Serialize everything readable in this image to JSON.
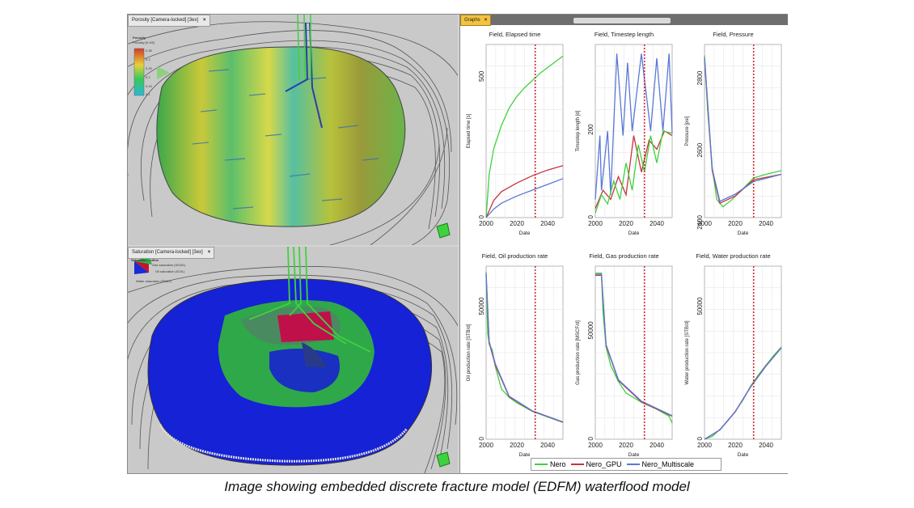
{
  "viewers": {
    "top_tab": "Porosity [Camera-locked] [3ex]",
    "bottom_tab": "Saturation [Camera-locked] [3ex]",
    "top_colorbar_title": "Porosity",
    "top_colorbar_sub": "Porosity [fr.1/5]",
    "top_colorbar_ticks": [
      "0.35",
      "0.3",
      "0.25",
      "0.2",
      "0.15",
      "0.1"
    ],
    "bottom_legend_title": "Saturation - oilfrw",
    "bottom_legend_items": [
      "Gas saturation (SGAS)",
      "Oil saturation (SOIL)",
      "Water saturation (SWAT)"
    ]
  },
  "plots_panel": {
    "tab_label": "Graphs",
    "legend": [
      {
        "name": "Nero",
        "color": "#3fd23f"
      },
      {
        "name": "Nero_GPU",
        "color": "#c8323c"
      },
      {
        "name": "Nero_Multiscale",
        "color": "#5a78d6"
      }
    ]
  },
  "chart_data": [
    {
      "type": "line",
      "title": "Field, Elapsed time",
      "xlabel": "Date",
      "ylabel": "Elapsed time [s]",
      "x_ticks": [
        "2000",
        "2020",
        "2040"
      ],
      "y_ticks": [
        "0",
        "500"
      ],
      "xlim": [
        2000,
        2050
      ],
      "ylim": [
        0,
        600
      ],
      "marker_x": 2032,
      "series": [
        {
          "name": "Nero",
          "x": [
            2000,
            2002,
            2005,
            2010,
            2015,
            2020,
            2025,
            2030,
            2035,
            2040,
            2045,
            2050
          ],
          "values": [
            0,
            150,
            240,
            320,
            380,
            420,
            450,
            475,
            500,
            520,
            540,
            560
          ]
        },
        {
          "name": "Nero_GPU",
          "x": [
            2000,
            2005,
            2010,
            2020,
            2030,
            2040,
            2050
          ],
          "values": [
            0,
            60,
            90,
            120,
            145,
            165,
            180
          ]
        },
        {
          "name": "Nero_Multiscale",
          "x": [
            2000,
            2005,
            2010,
            2020,
            2030,
            2040,
            2050
          ],
          "values": [
            0,
            30,
            50,
            75,
            95,
            115,
            135
          ]
        }
      ]
    },
    {
      "type": "line",
      "title": "Field, Timestep length",
      "xlabel": "Date",
      "ylabel": "Timestep length [d]",
      "x_ticks": [
        "2000",
        "2020",
        "2040"
      ],
      "y_ticks": [
        "0",
        "200"
      ],
      "xlim": [
        2000,
        2050
      ],
      "ylim": [
        0,
        380
      ],
      "marker_x": 2032,
      "series": [
        {
          "name": "Nero_Multiscale",
          "x": [
            2000,
            2003,
            2004,
            2008,
            2010,
            2014,
            2018,
            2021,
            2024,
            2030,
            2036,
            2040,
            2044,
            2048,
            2050
          ],
          "values": [
            40,
            180,
            60,
            190,
            50,
            360,
            180,
            340,
            190,
            360,
            190,
            350,
            190,
            360,
            185
          ]
        },
        {
          "name": "Nero_GPU",
          "x": [
            2000,
            2005,
            2010,
            2015,
            2020,
            2025,
            2030,
            2035,
            2040,
            2045,
            2050
          ],
          "values": [
            20,
            60,
            40,
            90,
            50,
            180,
            100,
            170,
            150,
            190,
            180
          ]
        },
        {
          "name": "Nero",
          "x": [
            2000,
            2004,
            2008,
            2012,
            2016,
            2020,
            2024,
            2028,
            2032,
            2036,
            2040,
            2044,
            2050
          ],
          "values": [
            10,
            50,
            30,
            80,
            40,
            120,
            60,
            160,
            100,
            180,
            120,
            190,
            185
          ]
        }
      ]
    },
    {
      "type": "line",
      "title": "Field, Pressure",
      "xlabel": "Date",
      "ylabel": "Pressure [psi]",
      "x_ticks": [
        "2000",
        "2020",
        "2040"
      ],
      "y_ticks": [
        "2400",
        "2600",
        "2800"
      ],
      "xlim": [
        2000,
        2050
      ],
      "ylim": [
        2400,
        2880
      ],
      "marker_x": 2032,
      "series": [
        {
          "name": "Nero",
          "x": [
            2000,
            2002,
            2005,
            2008,
            2012,
            2018,
            2025,
            2032,
            2040,
            2050
          ],
          "values": [
            2850,
            2700,
            2540,
            2450,
            2430,
            2450,
            2480,
            2510,
            2520,
            2530
          ]
        },
        {
          "name": "Nero_GPU",
          "x": [
            2000,
            2005,
            2010,
            2020,
            2032,
            2050
          ],
          "values": [
            2840,
            2530,
            2440,
            2460,
            2505,
            2520
          ]
        },
        {
          "name": "Nero_Multiscale",
          "x": [
            2000,
            2005,
            2010,
            2020,
            2032,
            2050
          ],
          "values": [
            2845,
            2535,
            2445,
            2465,
            2500,
            2520
          ]
        }
      ]
    },
    {
      "type": "line",
      "title": "Field, Oil production rate",
      "xlabel": "Date",
      "ylabel": "Oil production rate [STB/d]",
      "x_ticks": [
        "2000",
        "2020",
        "2040"
      ],
      "y_ticks": [
        "0",
        "50000"
      ],
      "xlim": [
        2000,
        2050
      ],
      "ylim": [
        0,
        62000
      ],
      "marker_x": 2032,
      "series": [
        {
          "name": "Nero",
          "x": [
            2000,
            2001,
            2002,
            2004,
            2006,
            2010,
            2015,
            2020,
            2030,
            2040,
            2050
          ],
          "values": [
            60000,
            38000,
            34000,
            32000,
            26000,
            18000,
            15000,
            13000,
            10000,
            8000,
            6000
          ]
        },
        {
          "name": "Nero_GPU",
          "x": [
            2000,
            2002,
            2006,
            2015,
            2030,
            2050
          ],
          "values": [
            59000,
            34500,
            26500,
            15200,
            10100,
            6100
          ]
        },
        {
          "name": "Nero_Multiscale",
          "x": [
            2000,
            2002,
            2006,
            2015,
            2030,
            2050
          ],
          "values": [
            59500,
            35000,
            27000,
            15400,
            10200,
            6200
          ]
        }
      ]
    },
    {
      "type": "line",
      "title": "Field, Gas production rate",
      "xlabel": "Date",
      "ylabel": "Gas production rate [MSCF/d]",
      "x_ticks": [
        "2000",
        "2020",
        "2040"
      ],
      "y_ticks": [
        "0",
        "50000"
      ],
      "xlim": [
        2000,
        2050
      ],
      "ylim": [
        0,
        75000
      ],
      "marker_x": 2032,
      "series": [
        {
          "name": "Nero",
          "x": [
            2000,
            2004,
            2005,
            2007,
            2010,
            2015,
            2020,
            2030,
            2040,
            2048,
            2050
          ],
          "values": [
            72000,
            72000,
            55000,
            40000,
            32000,
            25000,
            20000,
            16000,
            13000,
            10000,
            7000
          ]
        },
        {
          "name": "Nero_GPU",
          "x": [
            2000,
            2004,
            2007,
            2015,
            2030,
            2050
          ],
          "values": [
            71000,
            71000,
            40500,
            25500,
            16200,
            10000
          ]
        },
        {
          "name": "Nero_Multiscale",
          "x": [
            2000,
            2004,
            2007,
            2015,
            2030,
            2050
          ],
          "values": [
            71500,
            71500,
            41000,
            25800,
            16500,
            10200
          ]
        }
      ]
    },
    {
      "type": "line",
      "title": "Field, Water production rate",
      "xlabel": "Date",
      "ylabel": "Water production rate [STB/d]",
      "x_ticks": [
        "2000",
        "2020",
        "2040"
      ],
      "y_ticks": [
        "0",
        "50000"
      ],
      "xlim": [
        2000,
        2050
      ],
      "ylim": [
        0,
        62000
      ],
      "marker_x": 2032,
      "series": [
        {
          "name": "Nero",
          "x": [
            2000,
            2005,
            2010,
            2015,
            2020,
            2025,
            2030,
            2035,
            2040,
            2045,
            2050
          ],
          "values": [
            0,
            1000,
            3500,
            6500,
            10000,
            14000,
            19000,
            23000,
            26500,
            30000,
            33000
          ]
        },
        {
          "name": "Nero_GPU",
          "x": [
            2000,
            2010,
            2020,
            2030,
            2040,
            2050
          ],
          "values": [
            0,
            3400,
            9900,
            18800,
            26300,
            32800
          ]
        },
        {
          "name": "Nero_Multiscale",
          "x": [
            2000,
            2010,
            2020,
            2030,
            2040,
            2050
          ],
          "values": [
            0,
            3300,
            9800,
            18700,
            26200,
            32700
          ]
        }
      ]
    }
  ],
  "caption": "Image showing embedded discrete fracture model (EDFM) waterflood model"
}
